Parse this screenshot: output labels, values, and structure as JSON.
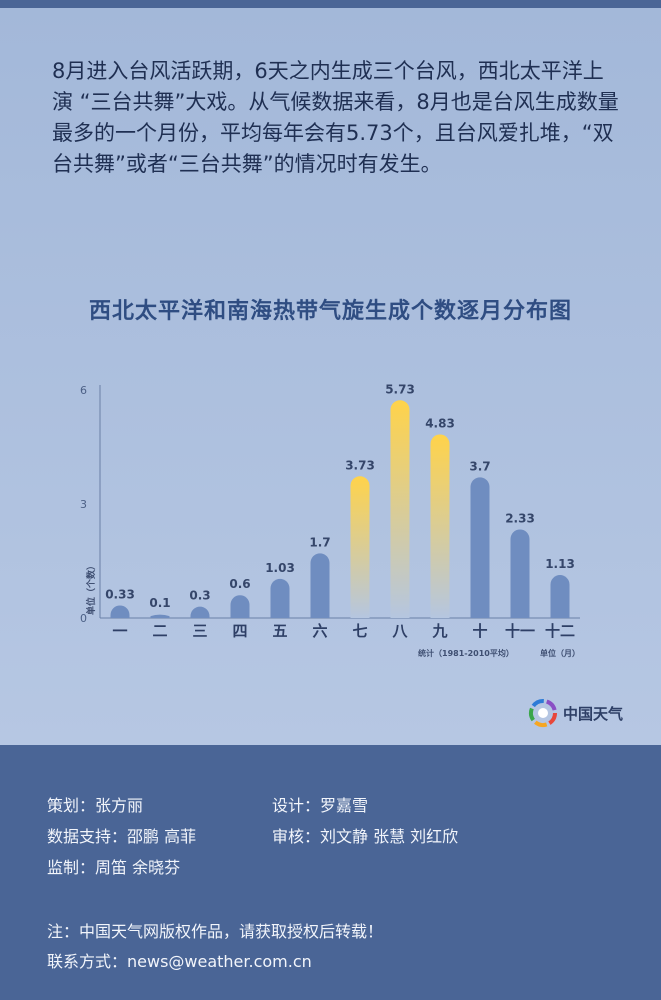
{
  "intro_text": "8月进入台风活跃期，6天之内生成三个台风，西北太平洋上演 “三台共舞”大戏。从气候数据来看，8月也是台风生成数量最多的一个月份，平均每年会有5.73个，且台风爱扎堆，“双台共舞”或者“三台共舞”的情况时有发生。",
  "chart_data": {
    "type": "bar",
    "title": "西北太平洋和南海热带气旋生成个数逐月分布图",
    "categories": [
      "一",
      "二",
      "三",
      "四",
      "五",
      "六",
      "七",
      "八",
      "九",
      "十",
      "十一",
      "十二"
    ],
    "values": [
      0.33,
      0.1,
      0.3,
      0.6,
      1.03,
      1.7,
      3.73,
      5.73,
      4.83,
      3.7,
      2.33,
      1.13
    ],
    "value_labels": [
      "0.33",
      "0.1",
      "0.3",
      "0.6",
      "1.03",
      "1.7",
      "3.73",
      "5.73",
      "4.83",
      "3.7",
      "2.33",
      "1.13"
    ],
    "highlighted": [
      false,
      false,
      false,
      false,
      false,
      false,
      true,
      true,
      true,
      false,
      false,
      false
    ],
    "ylim": [
      0,
      6
    ],
    "yticks": [
      "0",
      "3",
      "6"
    ],
    "ylabel": "单位（个数）",
    "note": "统计（1981-2010平均）",
    "xunit": "单位（月）",
    "grid": false,
    "colors": {
      "bar": "#6f8dc0",
      "highlight_top": "#ffd34a",
      "highlight_bottom": "#b5c6e0",
      "axis": "#6a7fa6"
    }
  },
  "brand": {
    "name": "中国天气",
    "logo_icon": "weather-china-logo-icon"
  },
  "credits": {
    "planner": "策划：张方丽",
    "designer": "设计：罗嘉雪",
    "data_support": "数据支持：邵鹏 高菲",
    "reviewer": "审核：刘文静 张慧 刘红欣",
    "supervisor": "监制：周笛   余晓芬"
  },
  "notice": {
    "copyright": "注：中国天气网版权作品，请获取授权后转载！",
    "contact": "联系方式：news@weather.com.cn"
  }
}
